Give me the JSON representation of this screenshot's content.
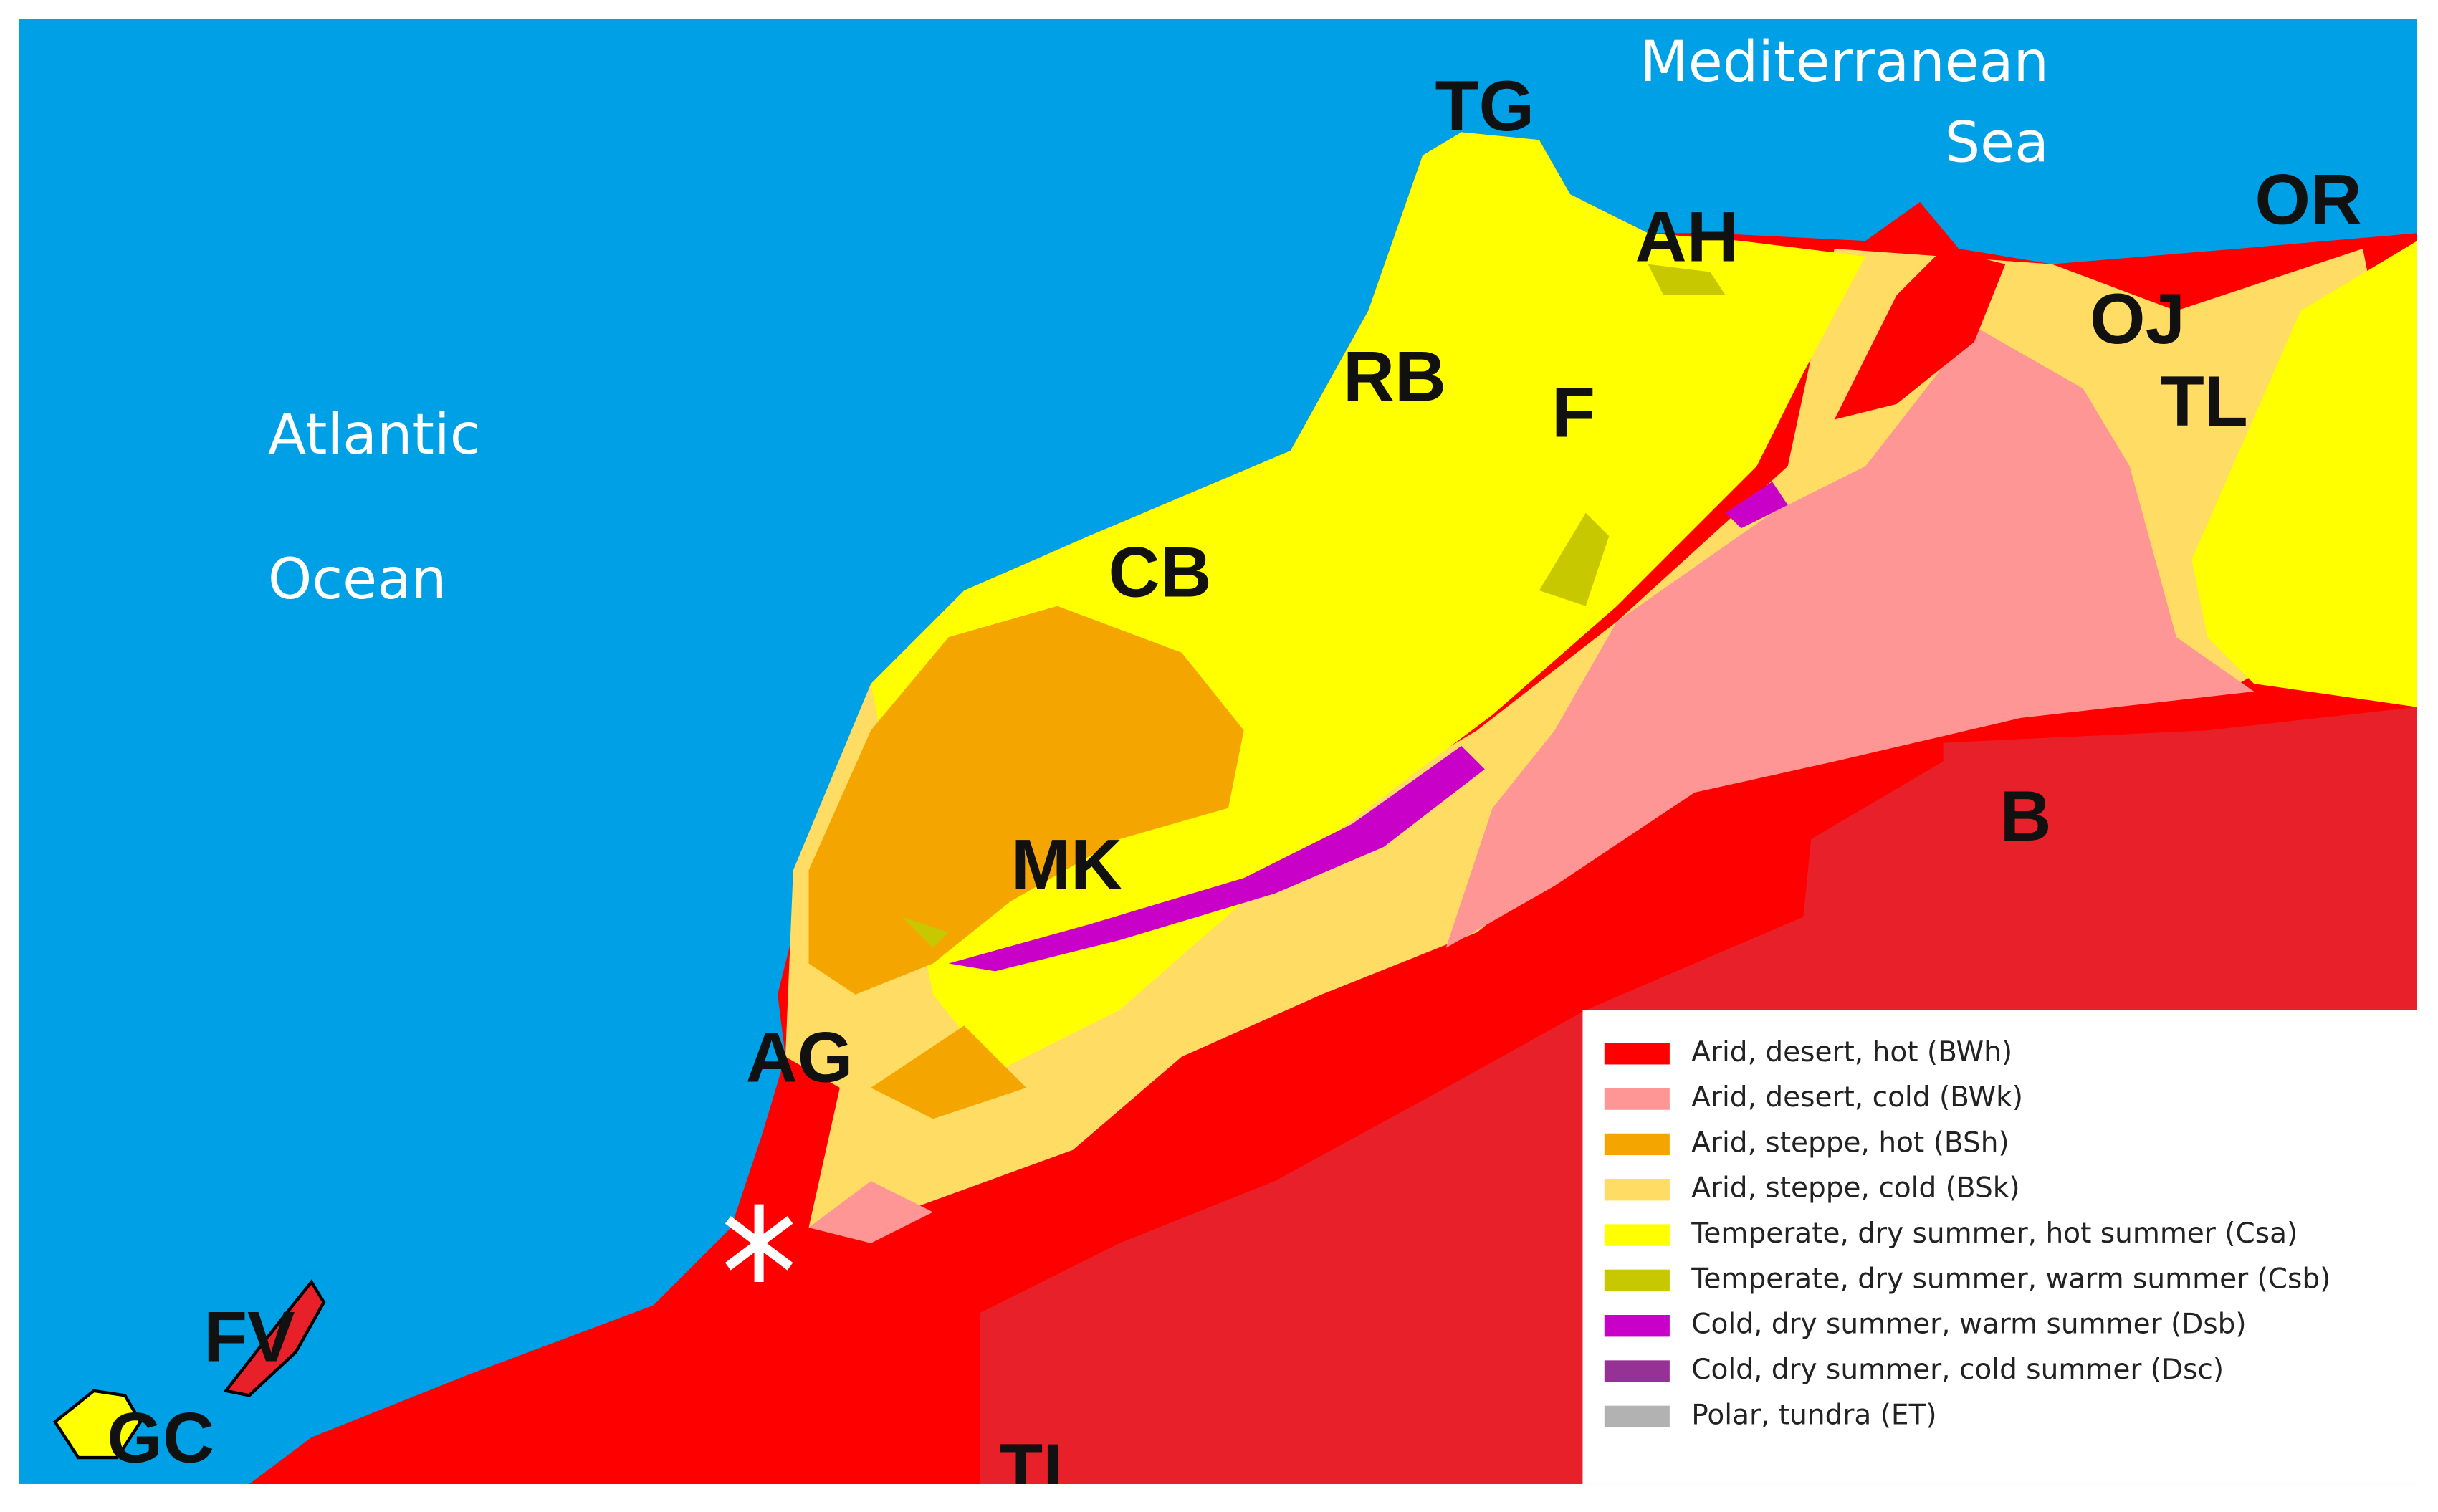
{
  "map": {
    "water_labels": [
      "Atlantic",
      "Ocean",
      "Mediterranean",
      "Sea"
    ],
    "places": [
      "TG",
      "AH",
      "OR",
      "OJ",
      "TL",
      "RB",
      "F",
      "CB",
      "MK",
      "AG",
      "B",
      "FV",
      "GC",
      "TI"
    ],
    "legend": [
      {
        "label": "Arid, desert, hot (BWh)",
        "color": "#ff0000"
      },
      {
        "label": "Arid, desert, cold (BWk)",
        "color": "#ff9696"
      },
      {
        "label": "Arid, steppe, hot (BSh)",
        "color": "#f5a500"
      },
      {
        "label": "Arid, steppe, cold (BSk)",
        "color": "#ffdc64"
      },
      {
        "label": "Temperate, dry summer, hot summer (Csa)",
        "color": "#ffff00"
      },
      {
        "label": "Temperate, dry summer, warm summer (Csb)",
        "color": "#c8c800"
      },
      {
        "label": "Cold, dry summer, warm summer (Dsb)",
        "color": "#c800c8"
      },
      {
        "label": "Cold, dry summer, cold summer (Dsc)",
        "color": "#963296"
      },
      {
        "label": "Polar, tundra (ET)",
        "color": "#b2b2b2"
      }
    ]
  }
}
